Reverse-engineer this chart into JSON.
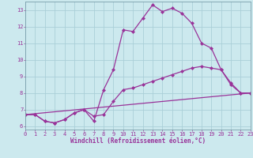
{
  "xlabel": "Windchill (Refroidissement éolien,°C)",
  "xlim": [
    0,
    23
  ],
  "ylim": [
    5.8,
    13.5
  ],
  "yticks": [
    6,
    7,
    8,
    9,
    10,
    11,
    12,
    13
  ],
  "xticks": [
    0,
    1,
    2,
    3,
    4,
    5,
    6,
    7,
    8,
    9,
    10,
    11,
    12,
    13,
    14,
    15,
    16,
    17,
    18,
    19,
    20,
    21,
    22,
    23
  ],
  "background_color": "#cce9ee",
  "grid_color": "#aacfd8",
  "line_color": "#993399",
  "line_width": 0.9,
  "marker": "D",
  "marker_size": 2.0,
  "lines": [
    {
      "x": [
        0,
        1,
        2,
        3,
        4,
        5,
        6,
        7,
        8,
        9,
        10,
        11,
        12,
        13,
        14,
        15,
        16,
        17,
        18,
        19,
        20,
        21,
        22,
        23
      ],
      "y": [
        6.7,
        6.7,
        6.3,
        6.2,
        6.4,
        6.8,
        7.0,
        6.3,
        8.2,
        9.4,
        11.8,
        11.7,
        12.5,
        13.3,
        12.9,
        13.1,
        12.8,
        12.2,
        11.0,
        10.7,
        9.4,
        8.5,
        8.0,
        8.0
      ]
    },
    {
      "x": [
        0,
        1,
        2,
        3,
        4,
        5,
        6,
        7,
        8,
        9,
        10,
        11,
        12,
        13,
        14,
        15,
        16,
        17,
        18,
        19,
        20,
        21,
        22,
        23
      ],
      "y": [
        6.7,
        6.7,
        6.3,
        6.2,
        6.4,
        6.8,
        7.0,
        6.6,
        6.7,
        7.5,
        8.2,
        8.3,
        8.5,
        8.7,
        8.9,
        9.1,
        9.3,
        9.5,
        9.6,
        9.5,
        9.4,
        8.6,
        8.0,
        8.0
      ]
    },
    {
      "x": [
        0,
        23
      ],
      "y": [
        6.7,
        8.0
      ]
    }
  ],
  "tick_fontsize": 5.0,
  "xlabel_fontsize": 5.5
}
